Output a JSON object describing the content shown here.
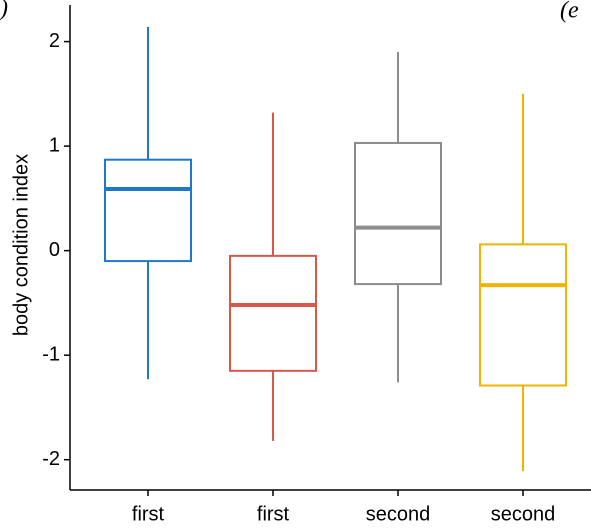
{
  "chart_data": {
    "type": "box",
    "y_label": "body condition index",
    "annotations": [
      ")",
      "(e"
    ],
    "categories": [
      "first",
      "first",
      "second",
      "second"
    ],
    "boxes": [
      {
        "color": "#1f78c8",
        "min": -1.23,
        "q1": -0.1,
        "median": 0.59,
        "q3": 0.87,
        "max": 2.14
      },
      {
        "color": "#d6574c",
        "min": -1.82,
        "q1": -1.15,
        "median": -0.52,
        "q3": -0.05,
        "max": 1.32
      },
      {
        "color": "#8c8c8c",
        "min": -1.26,
        "q1": -0.32,
        "median": 0.22,
        "q3": 1.03,
        "max": 1.9
      },
      {
        "color": "#f0b400",
        "min": -2.11,
        "q1": -1.29,
        "median": -0.33,
        "q3": 0.06,
        "max": 1.5
      }
    ],
    "ylim": [
      -2.29,
      2.35
    ],
    "yticks": [
      -2,
      -1,
      0,
      1,
      2
    ],
    "grid": false
  }
}
